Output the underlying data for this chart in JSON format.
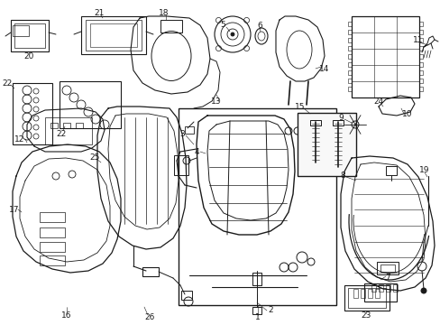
{
  "bg_color": "#ffffff",
  "line_color": "#1a1a1a",
  "lw": 0.7,
  "fig_w": 4.89,
  "fig_h": 3.6,
  "dpi": 100
}
